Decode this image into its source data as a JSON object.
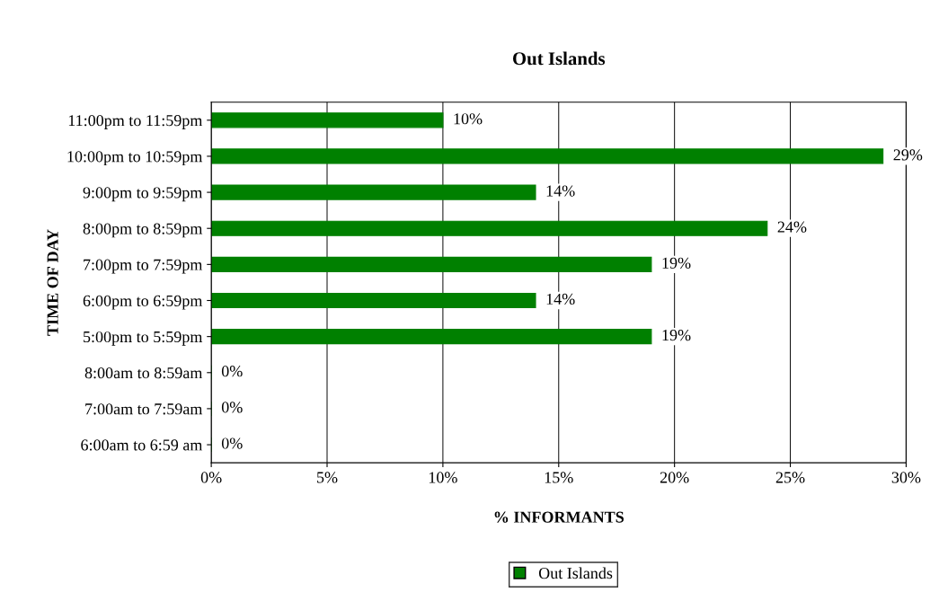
{
  "chart_data": {
    "type": "bar",
    "orientation": "horizontal",
    "title": "Out Islands",
    "xlabel": "% INFORMANTS",
    "ylabel": "TIME OF DAY",
    "categories": [
      "11:00pm to 11:59pm",
      "10:00pm to 10:59pm",
      "9:00pm to 9:59pm",
      "8:00pm to 8:59pm",
      "7:00pm to 7:59pm",
      "6:00pm to 6:59pm",
      "5:00pm to 5:59pm",
      "8:00am to 8:59am",
      "7:00am to 7:59am",
      "6:00am to 6:59 am"
    ],
    "series": [
      {
        "name": "Out Islands",
        "color": "#008000",
        "values": [
          10,
          29,
          14,
          24,
          19,
          14,
          19,
          0,
          0,
          0
        ],
        "value_labels": [
          "10%",
          "29%",
          "14%",
          "24%",
          "19%",
          "14%",
          "19%",
          "0%",
          "0%",
          "0%"
        ]
      }
    ],
    "xlim": [
      0,
      30
    ],
    "xticks": [
      {
        "value": 0,
        "label": "0%"
      },
      {
        "value": 5,
        "label": "5%"
      },
      {
        "value": 10,
        "label": "10%"
      },
      {
        "value": 15,
        "label": "15%"
      },
      {
        "value": 20,
        "label": "20%"
      },
      {
        "value": 25,
        "label": "25%"
      },
      {
        "value": 30,
        "label": "30%"
      }
    ],
    "grid": "x",
    "legend": "bottom"
  }
}
